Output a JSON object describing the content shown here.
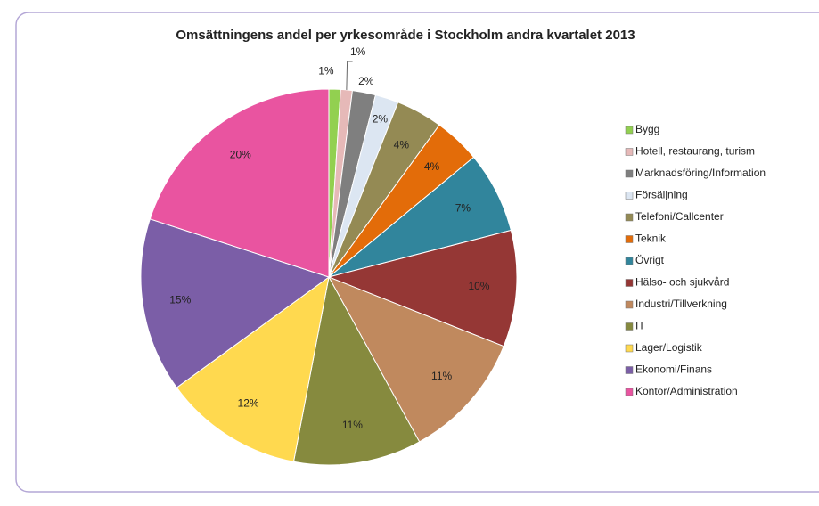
{
  "chart_data": {
    "type": "pie",
    "title": "Omsättningens andel per yrkesområde i Stockholm andra kvartalet 2013",
    "categories": [
      "Bygg",
      "Hotell, restaurang, turism",
      "Marknadsföring/Information",
      "Försäljning",
      "Telefoni/Callcenter",
      "Teknik",
      "Övrigt",
      "Hälso- och sjukvård",
      "Industri/Tillverkning",
      "IT",
      "Lager/Logistik",
      "Ekonomi/Finans",
      "Kontor/Administration"
    ],
    "values": [
      1,
      1,
      2,
      2,
      4,
      4,
      7,
      10,
      11,
      11,
      12,
      15,
      20
    ],
    "value_labels": [
      "1%",
      "1%",
      "2%",
      "2%",
      "4%",
      "4%",
      "7%",
      "10%",
      "11%",
      "11%",
      "12%",
      "15%",
      "20%"
    ],
    "colors": [
      "#92d050",
      "#e6b9b8",
      "#7f7f7f",
      "#dce6f2",
      "#948a54",
      "#e36c09",
      "#31859c",
      "#953735",
      "#c0895e",
      "#868a3e",
      "#ffd94f",
      "#7b5ea7",
      "#e954a0"
    ],
    "legend": "right"
  }
}
